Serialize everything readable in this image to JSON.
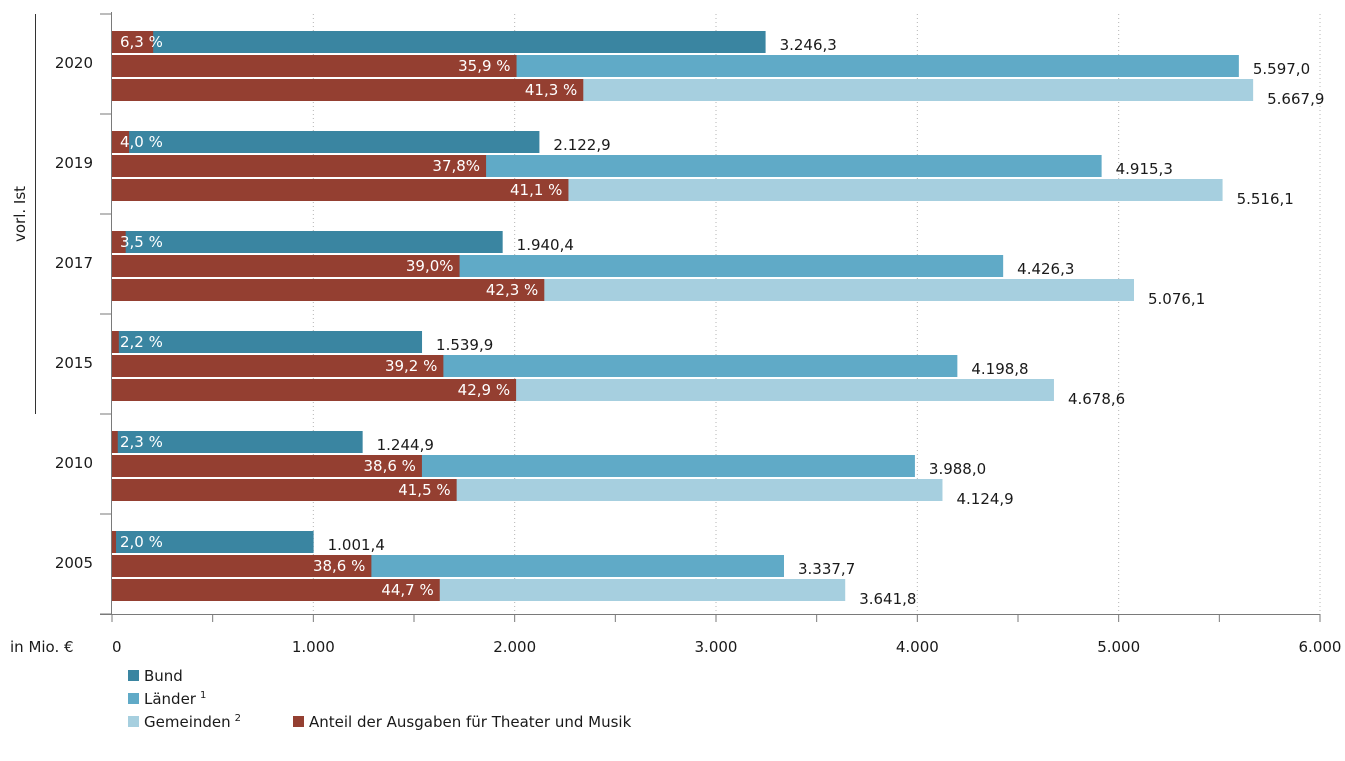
{
  "chart_data": {
    "type": "bar",
    "orientation": "horizontal",
    "categories": [
      "2020",
      "2019",
      "2017",
      "2015",
      "2010",
      "2005"
    ],
    "group_label": "vorl. Ist",
    "group_label_categories": [
      "2020",
      "2019",
      "2017",
      "2015"
    ],
    "xaxis_unit_label": "in Mio. €",
    "xlim": [
      0,
      6000
    ],
    "xticks": [
      0,
      1000,
      2000,
      3000,
      4000,
      5000,
      6000
    ],
    "xtick_labels": [
      "0",
      "1.000",
      "2.000",
      "3.000",
      "4.000",
      "5.000",
      "6.000"
    ],
    "grid": "vertical-dotted",
    "series": [
      {
        "name": "Bund",
        "sup": "",
        "color": "#3a85a1",
        "values": [
          3246.3,
          2122.9,
          1940.4,
          1539.9,
          1244.9,
          1001.4
        ],
        "value_labels": [
          "3.246,3",
          "2.122,9",
          "1.940,4",
          "1.539,9",
          "1.244,9",
          "1.001,4"
        ],
        "share_pct": [
          6.3,
          4.0,
          3.5,
          2.2,
          2.3,
          2.0
        ],
        "share_labels": [
          "6,3 %",
          "4,0 %",
          "3,5 %",
          "2,2 %",
          "2,3 %",
          "2,0 %"
        ]
      },
      {
        "name": "Länder",
        "sup": "1",
        "color": "#60aac7",
        "values": [
          5597.0,
          4915.3,
          4426.3,
          4198.8,
          3988.0,
          3337.7
        ],
        "value_labels": [
          "5.597,0",
          "4.915,3",
          "4.426,3",
          "4.198,8",
          "3.988,0",
          "3.337,7"
        ],
        "share_pct": [
          35.9,
          37.8,
          39.0,
          39.2,
          38.6,
          38.6
        ],
        "share_labels": [
          "35,9 %",
          "37,8%",
          "39,0%",
          "39,2 %",
          "38,6 %",
          "38,6 %"
        ]
      },
      {
        "name": "Gemeinden",
        "sup": "2",
        "color": "#a6cfdf",
        "values": [
          5667.9,
          5516.1,
          5076.1,
          4678.6,
          4124.9,
          3641.8
        ],
        "value_labels": [
          "5.667,9",
          "5.516,1",
          "5.076,1",
          "4.678,6",
          "4.124,9",
          "3.641,8"
        ],
        "share_pct": [
          41.3,
          41.1,
          42.3,
          42.9,
          41.5,
          44.7
        ],
        "share_labels": [
          "41,3 %",
          "41,1 %",
          "42,3 %",
          "42,9 %",
          "41,5 %",
          "44,7 %"
        ]
      }
    ],
    "share_series": {
      "name": "Anteil der Ausgaben für Theater und Musik",
      "color": "#943f31"
    },
    "legend_position": "bottom-left"
  }
}
